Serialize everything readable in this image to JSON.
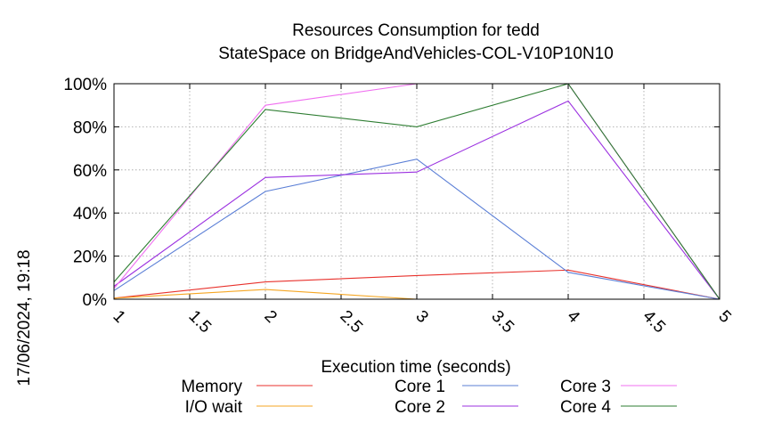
{
  "chart_data": {
    "type": "line",
    "title": "Resources Consumption for tedd",
    "subtitle": "StateSpace on BridgeAndVehicles-COL-V10P10N10",
    "xlabel": "Execution time (seconds)",
    "ylabel": "",
    "timestamp": "17/06/2024, 19:18",
    "xlim": [
      1,
      5
    ],
    "ylim": [
      0,
      100
    ],
    "x_ticks": [
      "1",
      "1.5",
      "2",
      "2.5",
      "3",
      "3.5",
      "4",
      "4.5",
      "5"
    ],
    "y_ticks": [
      "0%",
      "20%",
      "40%",
      "60%",
      "80%",
      "100%"
    ],
    "grid": true,
    "legend_position": "bottom",
    "x": [
      1,
      2,
      3,
      4,
      5
    ],
    "series": [
      {
        "name": "Memory",
        "color": "#e8312c",
        "values": [
          0.5,
          8,
          11,
          13.5,
          0
        ]
      },
      {
        "name": "I/O wait",
        "color": "#f5a623",
        "values": [
          0.5,
          4.5,
          0,
          0,
          0
        ]
      },
      {
        "name": "Core 1",
        "color": "#5b7fd6",
        "values": [
          4,
          50,
          65,
          12.5,
          0
        ]
      },
      {
        "name": "Core 2",
        "color": "#9b30e0",
        "values": [
          6,
          56.5,
          59,
          92,
          0
        ]
      },
      {
        "name": "Core 3",
        "color": "#f070f0",
        "values": [
          5,
          90,
          100,
          100,
          0
        ]
      },
      {
        "name": "Core 4",
        "color": "#2e7d32",
        "values": [
          8,
          88,
          80,
          100,
          0
        ]
      }
    ]
  }
}
